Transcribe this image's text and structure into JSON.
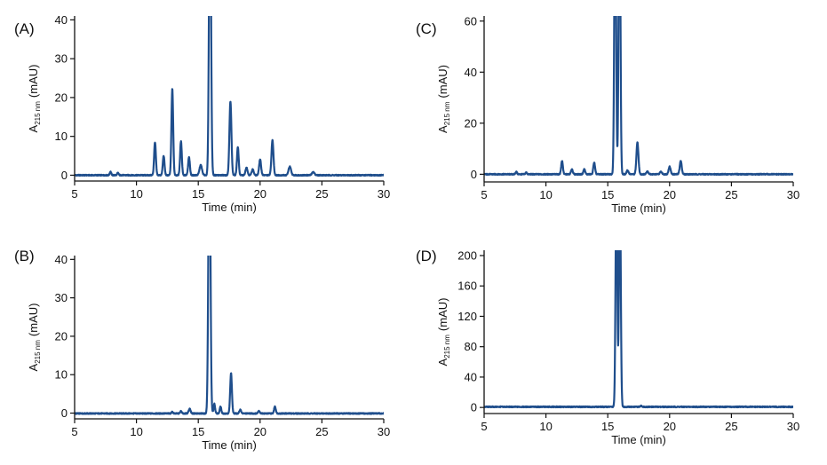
{
  "colors": {
    "trace": "#1f4e8c"
  },
  "chart_data": [
    {
      "panel": "(A)",
      "type": "line",
      "xlabel": "Time (min)",
      "ylabel_main": "A",
      "ylabel_sub": "215 nm",
      "ylabel_unit": "(mAU)",
      "xlim": [
        5,
        30
      ],
      "ylim": [
        -1.5,
        41
      ],
      "xticks": [
        5,
        10,
        15,
        20,
        25,
        30
      ],
      "yticks": [
        0,
        10,
        20,
        30,
        40
      ],
      "baseline": 0,
      "peaks": [
        {
          "x": 7.9,
          "h": 0.9,
          "w": 0.06
        },
        {
          "x": 8.5,
          "h": 0.6,
          "w": 0.06
        },
        {
          "x": 11.5,
          "h": 8.5,
          "w": 0.07
        },
        {
          "x": 12.2,
          "h": 5.0,
          "w": 0.07
        },
        {
          "x": 12.9,
          "h": 22.2,
          "w": 0.07
        },
        {
          "x": 13.6,
          "h": 8.7,
          "w": 0.07
        },
        {
          "x": 14.25,
          "h": 4.6,
          "w": 0.07
        },
        {
          "x": 15.2,
          "h": 2.6,
          "w": 0.1
        },
        {
          "x": 15.95,
          "h": 80.0,
          "w": 0.08
        },
        {
          "x": 17.6,
          "h": 19.0,
          "w": 0.08
        },
        {
          "x": 18.2,
          "h": 7.2,
          "w": 0.07
        },
        {
          "x": 18.9,
          "h": 2.0,
          "w": 0.08
        },
        {
          "x": 19.4,
          "h": 1.5,
          "w": 0.08
        },
        {
          "x": 20.0,
          "h": 4.0,
          "w": 0.08
        },
        {
          "x": 21.0,
          "h": 9.0,
          "w": 0.08
        },
        {
          "x": 22.4,
          "h": 2.2,
          "w": 0.1
        },
        {
          "x": 24.3,
          "h": 0.8,
          "w": 0.1
        }
      ]
    },
    {
      "panel": "(B)",
      "type": "line",
      "xlabel": "Time (min)",
      "ylabel_main": "A",
      "ylabel_sub": "215 nm",
      "ylabel_unit": "(mAU)",
      "xlim": [
        5,
        30
      ],
      "ylim": [
        -1.5,
        41
      ],
      "xticks": [
        5,
        10,
        15,
        20,
        25,
        30
      ],
      "yticks": [
        0,
        10,
        20,
        30,
        40
      ],
      "baseline": -0.1,
      "peaks": [
        {
          "x": 12.9,
          "h": 0.4,
          "w": 0.06
        },
        {
          "x": 13.6,
          "h": 0.6,
          "w": 0.06
        },
        {
          "x": 14.3,
          "h": 1.2,
          "w": 0.08
        },
        {
          "x": 15.9,
          "h": 80.0,
          "w": 0.08
        },
        {
          "x": 16.3,
          "h": 2.5,
          "w": 0.06
        },
        {
          "x": 16.8,
          "h": 1.8,
          "w": 0.06
        },
        {
          "x": 17.65,
          "h": 10.5,
          "w": 0.07
        },
        {
          "x": 18.4,
          "h": 1.0,
          "w": 0.07
        },
        {
          "x": 19.9,
          "h": 0.7,
          "w": 0.07
        },
        {
          "x": 21.2,
          "h": 1.8,
          "w": 0.07
        }
      ]
    },
    {
      "panel": "(C)",
      "type": "line",
      "xlabel": "Time (min)",
      "ylabel_main": "A",
      "ylabel_sub": "215 nm",
      "ylabel_unit": "(mAU)",
      "xlim": [
        5,
        30
      ],
      "ylim": [
        -3,
        62
      ],
      "xticks": [
        5,
        10,
        15,
        20,
        25,
        30
      ],
      "yticks": [
        0,
        20,
        40,
        60
      ],
      "baseline": 0,
      "peaks": [
        {
          "x": 7.6,
          "h": 1.0,
          "w": 0.06
        },
        {
          "x": 8.4,
          "h": 0.7,
          "w": 0.06
        },
        {
          "x": 11.3,
          "h": 5.2,
          "w": 0.07
        },
        {
          "x": 12.1,
          "h": 2.0,
          "w": 0.07
        },
        {
          "x": 13.1,
          "h": 2.0,
          "w": 0.07
        },
        {
          "x": 13.9,
          "h": 4.6,
          "w": 0.07
        },
        {
          "x": 15.6,
          "h": 120.0,
          "w": 0.07
        },
        {
          "x": 15.95,
          "h": 120.0,
          "w": 0.07
        },
        {
          "x": 16.6,
          "h": 1.5,
          "w": 0.08
        },
        {
          "x": 17.4,
          "h": 12.5,
          "w": 0.08
        },
        {
          "x": 18.2,
          "h": 1.2,
          "w": 0.08
        },
        {
          "x": 19.3,
          "h": 1.0,
          "w": 0.08
        },
        {
          "x": 20.0,
          "h": 3.0,
          "w": 0.08
        },
        {
          "x": 20.9,
          "h": 5.2,
          "w": 0.08
        }
      ]
    },
    {
      "panel": "(D)",
      "type": "line",
      "xlabel": "Time (min)",
      "ylabel_main": "A",
      "ylabel_sub": "215 nm",
      "ylabel_unit": "(mAU)",
      "xlim": [
        5,
        30
      ],
      "ylim": [
        -8,
        207
      ],
      "xticks": [
        5,
        10,
        15,
        20,
        25,
        30
      ],
      "yticks": [
        0,
        40,
        80,
        120,
        160,
        200
      ],
      "baseline": 0.8,
      "peaks": [
        {
          "x": 15.7,
          "h": 300.0,
          "w": 0.07
        },
        {
          "x": 15.98,
          "h": 300.0,
          "w": 0.07
        },
        {
          "x": 17.7,
          "h": 1.2,
          "w": 0.08
        }
      ]
    }
  ]
}
